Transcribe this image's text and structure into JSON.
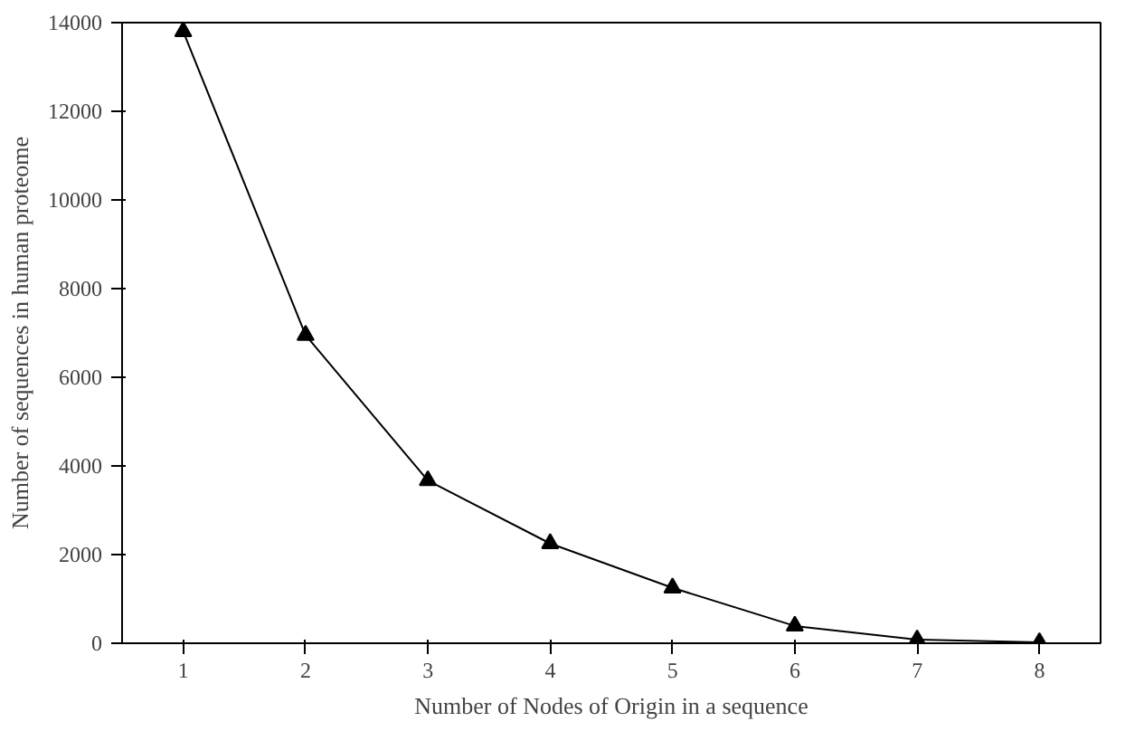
{
  "chart_data": {
    "type": "line",
    "xlabel": "Number of Nodes of Origin in a sequence",
    "ylabel": "Number of sequences in human proteome",
    "categories": [
      "1",
      "2",
      "3",
      "4",
      "5",
      "6",
      "7",
      "8"
    ],
    "series": [
      {
        "color": "#000000",
        "values": [
          13800,
          6950,
          3670,
          2250,
          1250,
          390,
          80,
          20
        ]
      }
    ],
    "ylim": [
      0,
      14000
    ],
    "yticks": [
      0,
      2000,
      4000,
      6000,
      8000,
      10000,
      12000,
      14000
    ],
    "marker": "triangle",
    "line_style": "solid",
    "grid": false
  }
}
